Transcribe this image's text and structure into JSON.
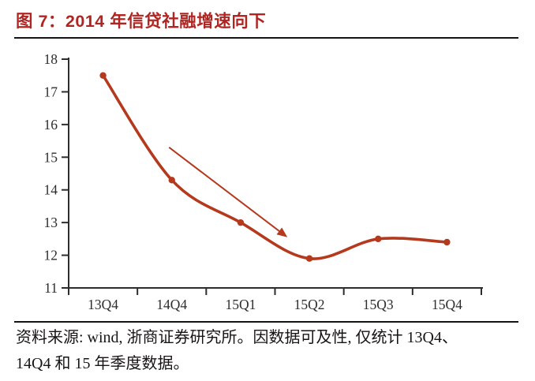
{
  "header": {
    "title": "图 7：2014 年信贷社融增速向下"
  },
  "chart_data": {
    "type": "line",
    "title": "2014 年信贷社融增速向下",
    "categories": [
      "13Q4",
      "14Q4",
      "15Q1",
      "15Q2",
      "15Q3",
      "15Q4"
    ],
    "values": [
      17.5,
      14.3,
      13.0,
      11.9,
      12.5,
      12.4
    ],
    "xlabel": "",
    "ylabel": "",
    "ylim": [
      11,
      18
    ],
    "ytick_step": 1,
    "grid": false,
    "legend": false,
    "line_color": "#b5391d",
    "marker_color": "#b5391d",
    "axis_color": "#2e2d2b",
    "annotation_arrow": {
      "from": {
        "x": 0.96,
        "y": 15.3
      },
      "to": {
        "x": 2.68,
        "y": 12.55
      },
      "color": "#b5391d"
    }
  },
  "footer": {
    "source_line1": "资料来源: wind, 浙商证券研究所。因数据可及性, 仅统计 13Q4、",
    "source_line2": "14Q4 和 15 年季度数据。"
  },
  "colors": {
    "title": "#b02522",
    "divider": "#141414",
    "body_text": "#171513"
  }
}
